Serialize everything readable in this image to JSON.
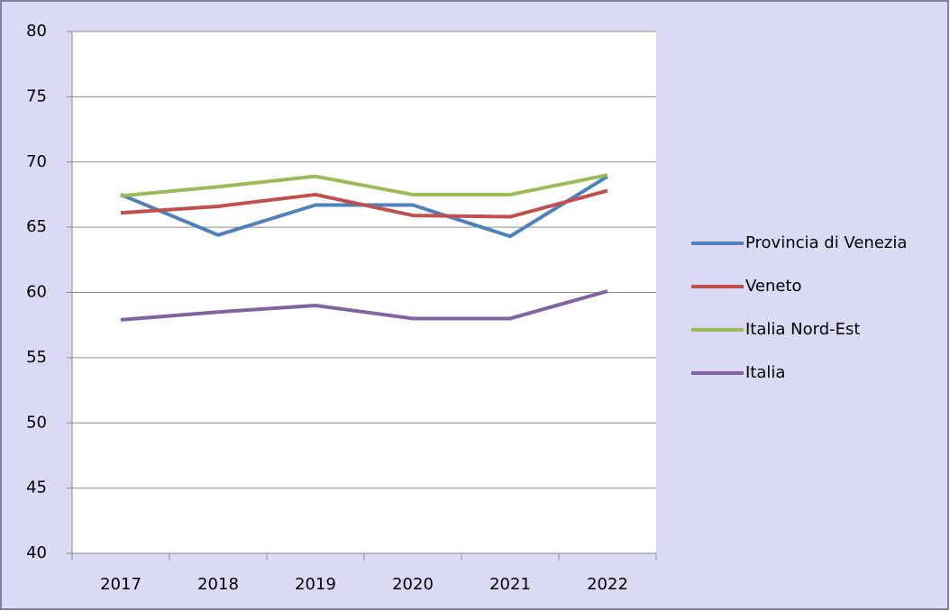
{
  "chart_data": {
    "type": "line",
    "categories": [
      "2017",
      "2018",
      "2019",
      "2020",
      "2021",
      "2022"
    ],
    "series": [
      {
        "name": "Provincia di Venezia",
        "color": "#4f81bd",
        "values": [
          67.5,
          64.4,
          66.7,
          66.7,
          64.3,
          68.9
        ]
      },
      {
        "name": "Veneto",
        "color": "#c0504d",
        "values": [
          66.1,
          66.6,
          67.5,
          65.9,
          65.8,
          67.8
        ]
      },
      {
        "name": "Italia Nord-Est",
        "color": "#9bbb59",
        "values": [
          67.4,
          68.1,
          68.9,
          67.5,
          67.5,
          69.0
        ]
      },
      {
        "name": "Italia",
        "color": "#8064a2",
        "values": [
          57.9,
          58.5,
          59.0,
          58.0,
          58.0,
          60.1
        ]
      }
    ],
    "ylim": [
      40,
      80
    ],
    "yticks": [
      40,
      45,
      50,
      55,
      60,
      65,
      70,
      75,
      80
    ],
    "grid": true,
    "legend": "right"
  }
}
